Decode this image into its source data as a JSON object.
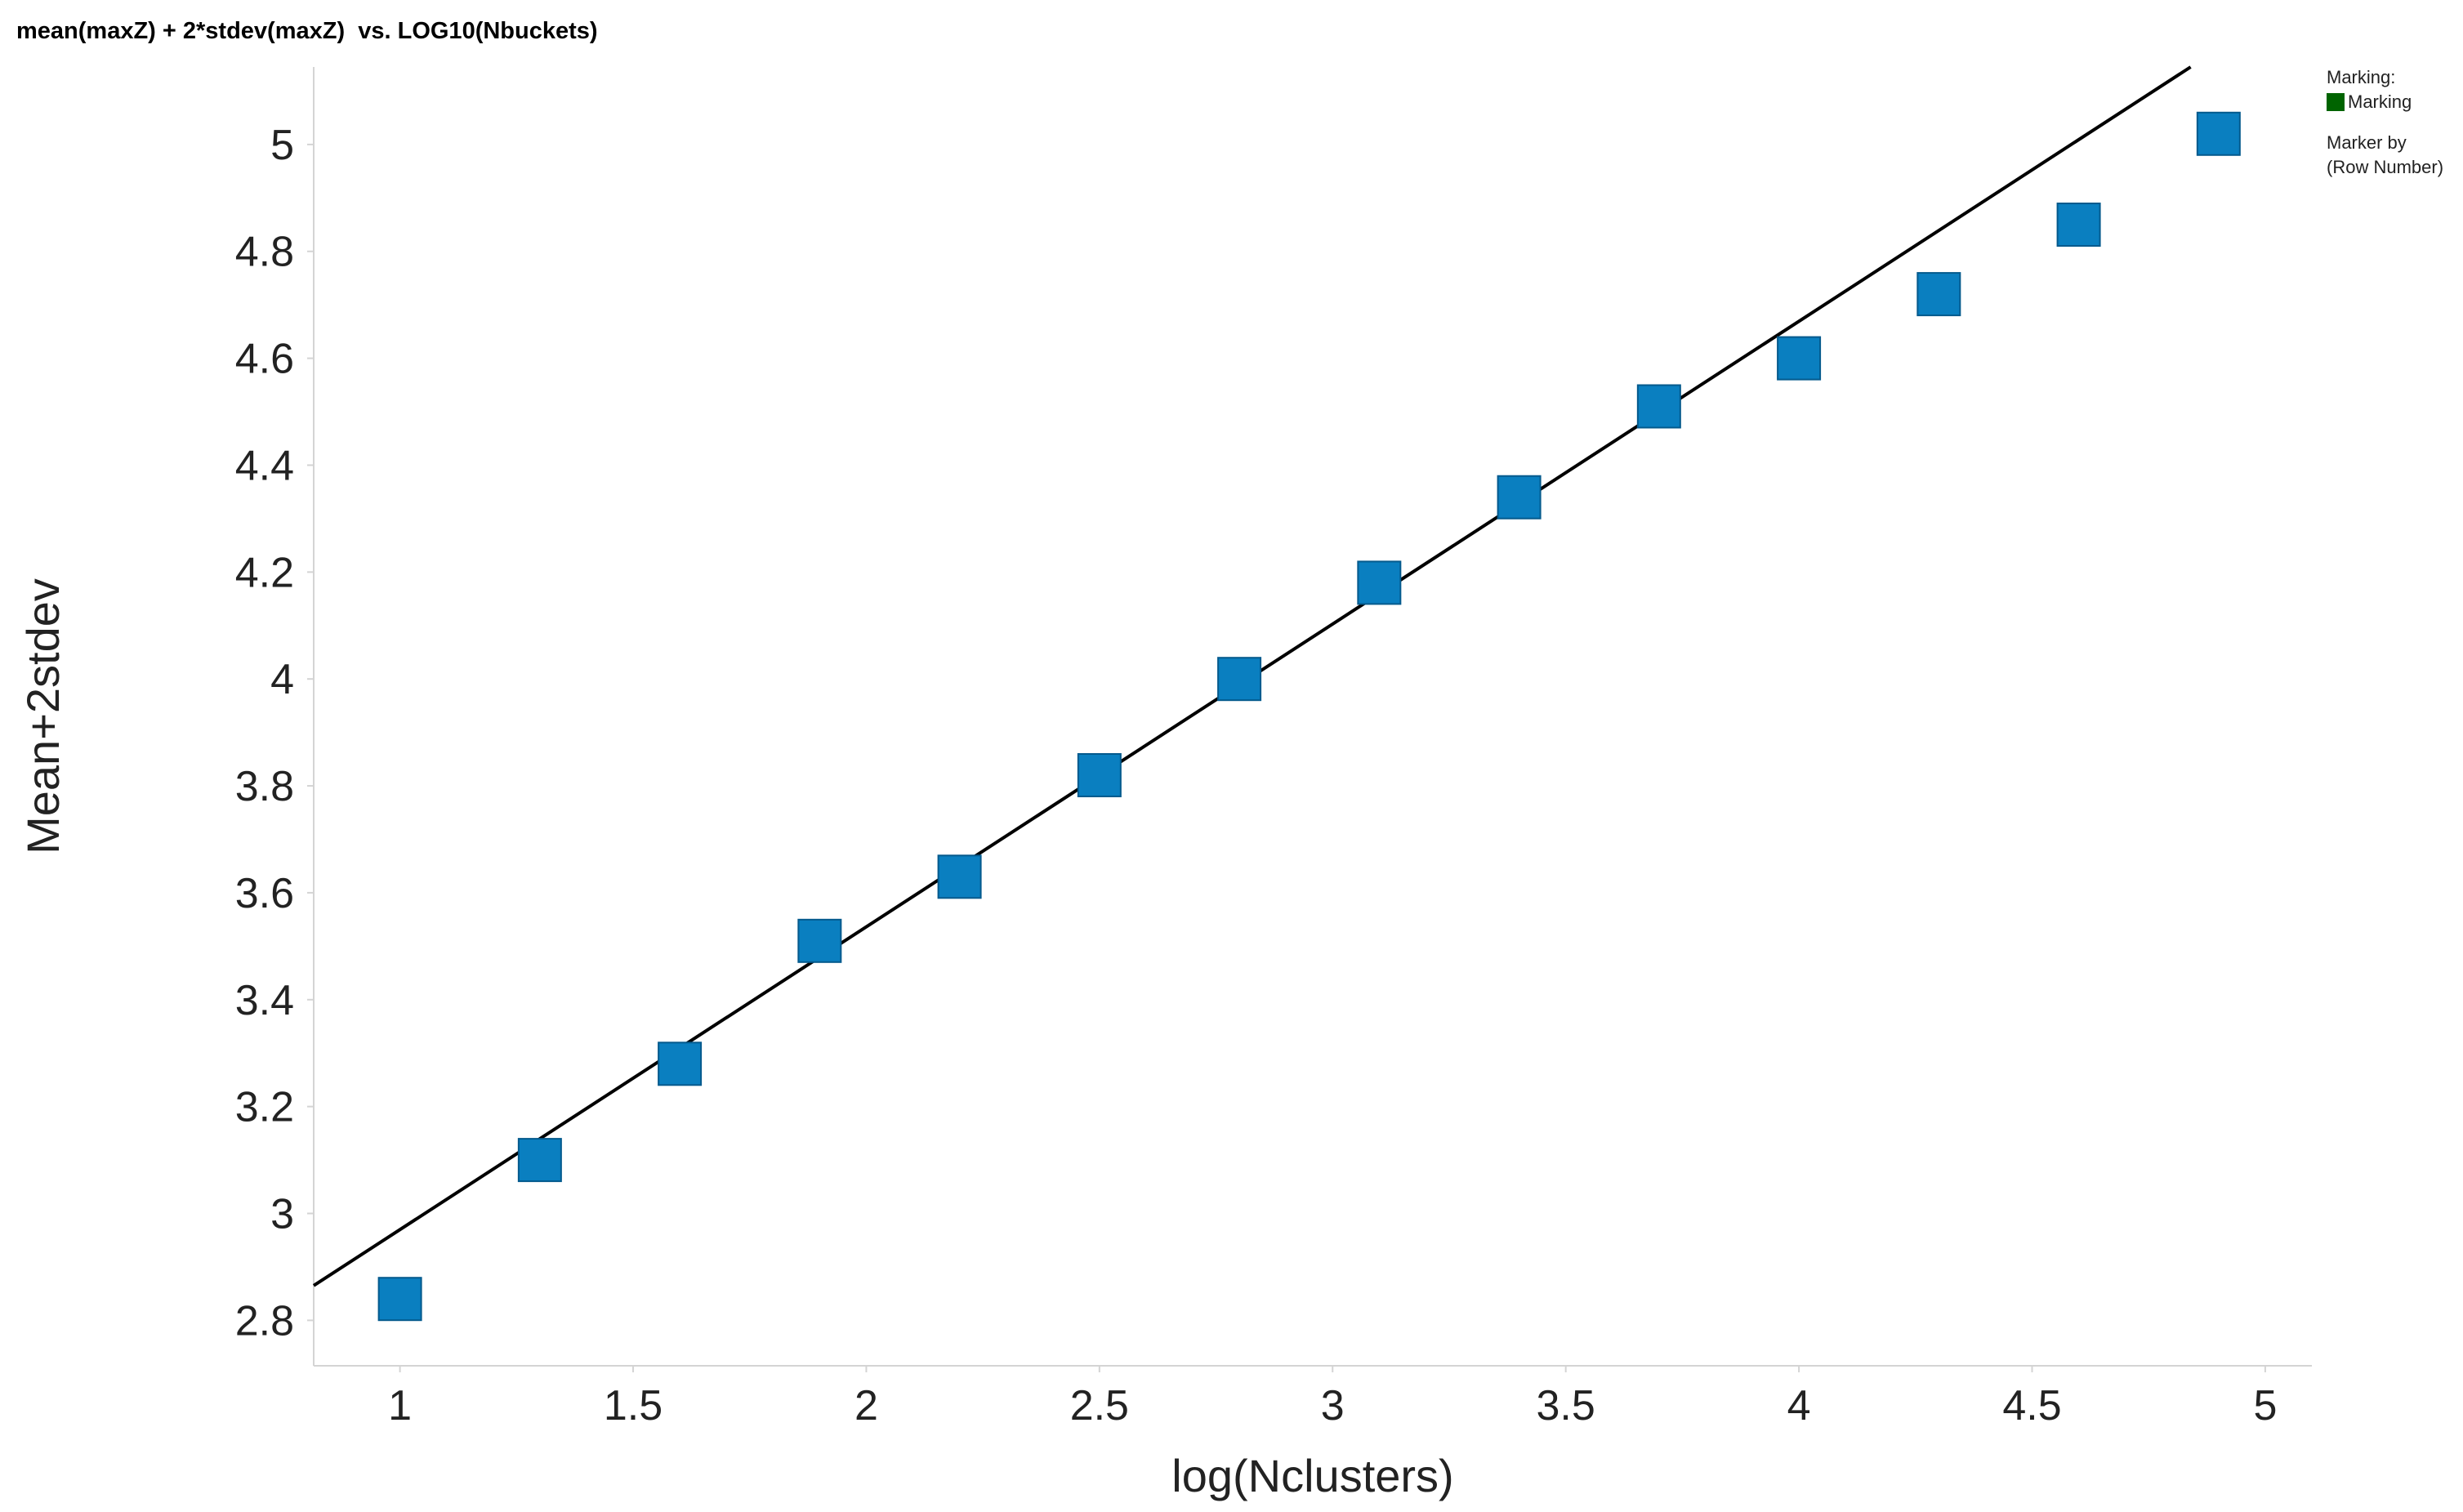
{
  "title": "mean(maxZ) + 2*stdev(maxZ)  vs. LOG10(Nbuckets)",
  "legend": {
    "marking_header": "Marking:",
    "marking_label": "Marking",
    "marking_color": "#006400",
    "marker_by_line1": "Marker by",
    "marker_by_line2": "(Row Number)"
  },
  "chart_data": {
    "type": "scatter",
    "title": "mean(maxZ) + 2*stdev(maxZ)  vs. LOG10(Nbuckets)",
    "xlabel": "log(Nclusters)",
    "ylabel": "Mean+2stdev",
    "xlim": [
      0.815,
      5.1
    ],
    "ylim": [
      2.715,
      5.145
    ],
    "xticks": [
      "1",
      "1.5",
      "2",
      "2.5",
      "3",
      "3.5",
      "4",
      "4.5",
      "5"
    ],
    "yticks": [
      "2.8",
      "3",
      "3.2",
      "3.4",
      "3.6",
      "3.8",
      "4",
      "4.2",
      "4.4",
      "4.6",
      "4.8",
      "5"
    ],
    "grid": false,
    "marker": "square",
    "marker_color": "#0a7fc0",
    "series": [
      {
        "x": [
          1.0,
          1.3,
          1.6,
          1.9,
          2.2,
          2.5,
          2.8,
          3.1,
          3.4,
          3.7,
          4.0,
          4.3,
          4.6,
          4.9
        ],
        "y": [
          2.84,
          3.1,
          3.28,
          3.51,
          3.63,
          3.82,
          4.0,
          4.18,
          4.34,
          4.51,
          4.6,
          4.72,
          4.85,
          5.02
        ]
      }
    ],
    "fit_line": {
      "x": [
        0.815,
        4.84
      ],
      "y": [
        2.865,
        5.145
      ],
      "color": "#000000"
    }
  }
}
